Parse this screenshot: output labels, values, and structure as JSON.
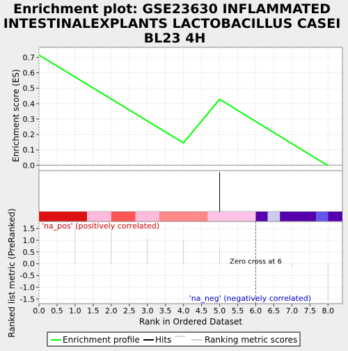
{
  "chart_data": {
    "type": "line",
    "title": "Enrichment plot: GSE23630 INFLAMMATED INTESTINALEXPLANTS LACTOBACILLUS CASEI BL23 4H",
    "title_lines": [
      "Enrichment plot: GSE23630 INFLAMMATED",
      "INTESTINALEXPLANTS LACTOBACILLUS CASEI",
      "BL23 4H"
    ],
    "top_panel": {
      "ylabel": "Enrichment score (ES)",
      "ylim": [
        -0.035,
        0.765
      ],
      "yticks": [
        0.0,
        0.1,
        0.2,
        0.3,
        0.4,
        0.5,
        0.6,
        0.7
      ],
      "ytick_labels": [
        "0.0",
        "0.1",
        "0.2",
        "0.3",
        "0.4",
        "0.5",
        "0.6",
        "0.7"
      ],
      "grid": true,
      "series": [
        {
          "name": "Enrichment profile",
          "color": "#00ff00",
          "x": [
            0.0,
            4.0,
            5.0,
            8.0
          ],
          "values": [
            0.715,
            0.145,
            0.428,
            -0.003
          ]
        }
      ]
    },
    "hits": {
      "name": "Hits",
      "x": [
        5.0
      ],
      "color": "#000000"
    },
    "heat_bar": {
      "segments": [
        {
          "from": 0.0,
          "to": 1.33,
          "color": "#dd1111"
        },
        {
          "from": 1.33,
          "to": 2.0,
          "color": "#ffbbdd"
        },
        {
          "from": 2.0,
          "to": 2.67,
          "color": "#ff5555"
        },
        {
          "from": 2.67,
          "to": 3.33,
          "color": "#ffbbdd"
        },
        {
          "from": 3.33,
          "to": 4.67,
          "color": "#ff8888"
        },
        {
          "from": 4.67,
          "to": 6.0,
          "color": "#ffc2e6"
        },
        {
          "from": 6.0,
          "to": 6.33,
          "color": "#5500aa"
        },
        {
          "from": 6.33,
          "to": 6.67,
          "color": "#ccccee"
        },
        {
          "from": 6.67,
          "to": 7.67,
          "color": "#5500aa"
        },
        {
          "from": 7.67,
          "to": 8.0,
          "color": "#6655ee"
        },
        {
          "from": 8.0,
          "to": 8.4,
          "color": "#5500aa"
        }
      ]
    },
    "bottom_panel": {
      "ylabel": "Ranked list metric (PreRanked)",
      "ylim": [
        -1.7,
        1.8
      ],
      "yticks": [
        -1.5,
        -1.0,
        -0.5,
        0.0,
        0.5,
        1.0,
        1.5
      ],
      "ytick_labels": [
        "-1.5",
        "-1.0",
        "-0.5",
        "0.0",
        "0.5",
        "1.0",
        "1.5"
      ],
      "grid": true,
      "series": [
        {
          "name": "Ranking metric scores",
          "color": "#cccccc",
          "x": [
            1.0,
            2.0,
            3.0,
            4.0,
            5.0,
            7.0,
            8.0
          ],
          "values": [
            1.55,
            1.4,
            1.05,
            1.0,
            0.7,
            -0.1,
            -1.55
          ]
        }
      ],
      "annotations": {
        "pos_label": "'na_pos' (positively correlated)",
        "neg_label": "'na_neg' (negatively correlated)",
        "zero_cross_label": "Zero cross at 6",
        "zero_cross_x": 6
      }
    },
    "xlabel": "Rank in Ordered Dataset",
    "xlim": [
      0.0,
      8.4
    ],
    "xticks": [
      0.0,
      0.5,
      1.0,
      1.5,
      2.0,
      2.5,
      3.0,
      3.5,
      4.0,
      4.5,
      5.0,
      5.5,
      6.0,
      6.5,
      7.0,
      7.5,
      8.0
    ],
    "xtick_labels": [
      "0.0",
      "0.5",
      "1.0",
      "1.5",
      "2.0",
      "2.5",
      "3.0",
      "3.5",
      "4.0",
      "4.5",
      "5.0",
      "5.5",
      "6.0",
      "6.5",
      "7.0",
      "7.5",
      "8.0"
    ],
    "legend": {
      "placement": "bottom",
      "entries": [
        "Enrichment profile",
        "Hits",
        "Ranking metric scores"
      ]
    }
  }
}
